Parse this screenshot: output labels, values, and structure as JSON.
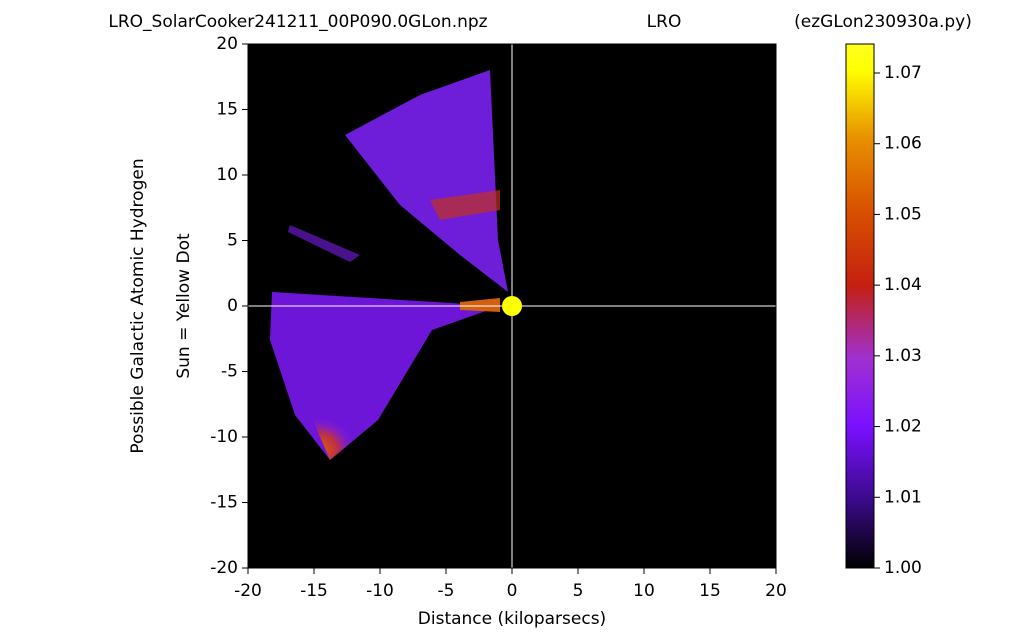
{
  "chart_data": {
    "type": "heatmap",
    "title_left": "LRO_SolarCooker241211_00P090.0GLon.npz",
    "title_center": "LRO",
    "title_right": "(ezGLon230930a.py)",
    "ylabel": [
      "Possible Galactic Atomic Hydrogen",
      "Sun = Yellow Dot"
    ],
    "xlabel": "Distance (kiloparsecs)",
    "xlim": [
      -20,
      20
    ],
    "ylim": [
      -20,
      20
    ],
    "xticks": [
      -20,
      -15,
      -10,
      -5,
      0,
      5,
      10,
      15,
      20
    ],
    "yticks": [
      -20,
      -15,
      -10,
      -5,
      0,
      5,
      10,
      15,
      20
    ],
    "clim": [
      1.0,
      1.0741
    ],
    "cticks": [
      {
        "value": 1.0,
        "label": "1.00"
      },
      1.01,
      1.02,
      1.03,
      1.04,
      1.05,
      1.06,
      1.07
    ],
    "background": "#000000",
    "crosshair_color": "#ffffff",
    "sun": {
      "x": 0,
      "y": 0,
      "color": "#ffff00"
    }
  }
}
